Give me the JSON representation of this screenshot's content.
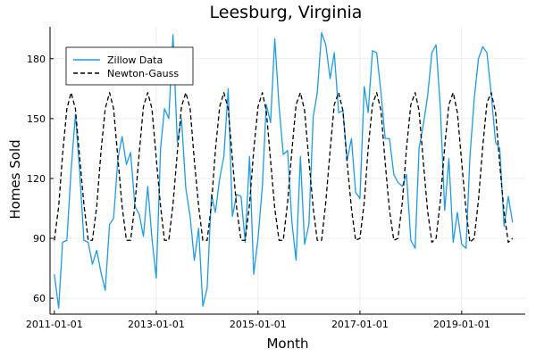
{
  "chart_data": {
    "type": "line",
    "title": "Leesburg, Virginia",
    "xlabel": "Month",
    "ylabel": "Homes Sold",
    "xlim": [
      "2010-12-01",
      "2020-04-01"
    ],
    "ylim": [
      52,
      196
    ],
    "x_ticks": [
      {
        "value": "2011-01-01",
        "label": "2011-01-01"
      },
      {
        "value": "2013-01-01",
        "label": "2013-01-01"
      },
      {
        "value": "2015-01-01",
        "label": "2015-01-01"
      },
      {
        "value": "2017-01-01",
        "label": "2017-01-01"
      },
      {
        "value": "2019-01-01",
        "label": "2019-01-01"
      }
    ],
    "y_ticks": [
      60,
      90,
      120,
      150,
      180
    ],
    "grid": true,
    "legend_position": "top-left",
    "x_start": "2011-01-01",
    "x_step": "1 month",
    "series": [
      {
        "name": "Zillow Data",
        "color": "#1f9be0",
        "style": "solid",
        "values": [
          72,
          55,
          88,
          89,
          124,
          152,
          124,
          89,
          88,
          77,
          84,
          73,
          64,
          97,
          100,
          130,
          141,
          127,
          133,
          106,
          102,
          91,
          116,
          90,
          70,
          135,
          155,
          150,
          192,
          138,
          150,
          115,
          101,
          79,
          95,
          56,
          65,
          112,
          103,
          120,
          131,
          165,
          101,
          112,
          111,
          88,
          131,
          72,
          90,
          116,
          157,
          148,
          190,
          156,
          132,
          134,
          98,
          79,
          131,
          87,
          97,
          151,
          163,
          193,
          187,
          170,
          183,
          153,
          154,
          129,
          140,
          113,
          110,
          166,
          153,
          184,
          183,
          163,
          140,
          140,
          122,
          118,
          116,
          122,
          89,
          85,
          135,
          147,
          161,
          183,
          187,
          155,
          104,
          130,
          88,
          103,
          87,
          85,
          131,
          160,
          180,
          186,
          183,
          162,
          138,
          135,
          96,
          111,
          98
        ]
      },
      {
        "name": "Newton-Gauss",
        "color": "#000000",
        "style": "dashed",
        "period_months": 12,
        "values": [
          89,
          106,
          132,
          155,
          163,
          155,
          131,
          107,
          89,
          89,
          106,
          133,
          155,
          163,
          155,
          130,
          106,
          89,
          89,
          107,
          133,
          156,
          163,
          155,
          130,
          106,
          89,
          89,
          107,
          133,
          156,
          163,
          155,
          129,
          106,
          89,
          89,
          107,
          134,
          156,
          163,
          155,
          130,
          105,
          89,
          89,
          107,
          134,
          156,
          163,
          154,
          129,
          105,
          89,
          89,
          108,
          134,
          157,
          163,
          154,
          129,
          105,
          89,
          89,
          108,
          134,
          157,
          163,
          154,
          128,
          105,
          89,
          90,
          108,
          135,
          157,
          163,
          154,
          128,
          104,
          89,
          90,
          108,
          135,
          157,
          163,
          154,
          128,
          104,
          88,
          90,
          109,
          136,
          157,
          163,
          153,
          128,
          104,
          88,
          90,
          109,
          136,
          158,
          163,
          153,
          127,
          103,
          88,
          90
        ]
      }
    ]
  }
}
